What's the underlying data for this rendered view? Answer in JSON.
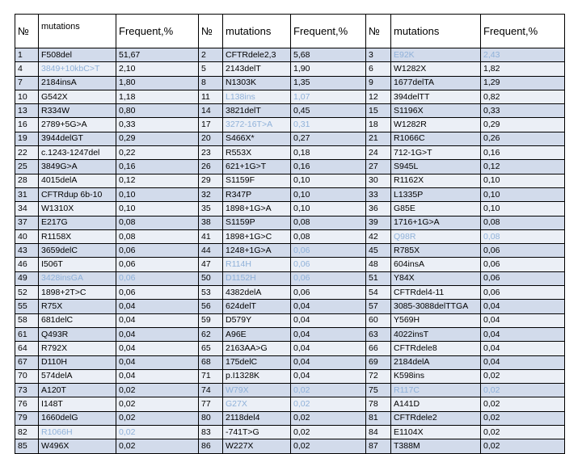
{
  "headers": [
    "№",
    "mutations",
    "Frequent,%",
    "№",
    "mutations",
    "Frequent,%",
    "№",
    "mutations",
    "Frequent,%"
  ],
  "rows": [
    [
      "1",
      "F508del",
      "51,67",
      "2",
      "CFTRdele2,3",
      "5,68",
      "3",
      "E92K",
      "2,43"
    ],
    [
      "4",
      "3849+10kbC>T",
      "2,10",
      "5",
      "2143delT",
      "1,90",
      "6",
      "W1282X",
      "1,82"
    ],
    [
      "7",
      "2184insA",
      "1,80",
      "8",
      "N1303K",
      "1,35",
      "9",
      "1677delTA",
      "1,29"
    ],
    [
      "10",
      "G542X",
      "1,18",
      "11",
      "L138ins",
      "1,07",
      "12",
      "394delTT",
      "0,82"
    ],
    [
      "13",
      "R334W",
      "0,80",
      "14",
      "3821delT",
      "0,45",
      "15",
      "S1196X",
      "0,33"
    ],
    [
      "16",
      "2789+5G>A",
      "0,33",
      "17",
      "3272-16T>A",
      "0,31",
      "18",
      "W1282R",
      "0,29"
    ],
    [
      "19",
      "3944delGT",
      "0,29",
      "20",
      "S466X*",
      "0,27",
      "21",
      "R1066C",
      "0,26"
    ],
    [
      "22",
      "c.1243-1247del",
      "0,22",
      "23",
      "R553X",
      "0,18",
      "24",
      "712-1G>T",
      "0,16"
    ],
    [
      "25",
      "3849G>A",
      "0,16",
      "26",
      "621+1G>T",
      "0,16",
      "27",
      "S945L",
      "0,12"
    ],
    [
      "28",
      "4015delA",
      "0,12",
      "29",
      "S1159F",
      "0,10",
      "30",
      "R1162X",
      "0,10"
    ],
    [
      "31",
      "CFTRdup 6b-10",
      "0,10",
      "32",
      "R347P",
      "0,10",
      "33",
      "L1335P",
      "0,10"
    ],
    [
      "34",
      "W1310X",
      "0,10",
      "35",
      "1898+1G>A",
      "0,10",
      "36",
      "G85E",
      "0,10"
    ],
    [
      "37",
      "E217G",
      "0,08",
      "38",
      "S1159P",
      "0,08",
      "39",
      "1716+1G>A",
      "0,08"
    ],
    [
      "40",
      "R1158X",
      "0,08",
      "41",
      "1898+1G>C",
      "0,08",
      "42",
      "Q98R",
      "0,08"
    ],
    [
      "43",
      "3659delC",
      "0,06",
      "44",
      "1248+1G>A",
      "0,06",
      "45",
      "R785X",
      "0,06"
    ],
    [
      "46",
      "I506T",
      "0,06",
      "47",
      "R114H",
      "0,06",
      "48",
      "604insA",
      "0,06"
    ],
    [
      "49",
      "3428insGA",
      "0,06",
      "50",
      "D1152H",
      "0,06",
      "51",
      "Y84X",
      "0,06"
    ],
    [
      "52",
      "1898+2T>C",
      "0,06",
      "53",
      "4382delA",
      "0,06",
      "54",
      "CFTRdel4-11",
      "0,06"
    ],
    [
      "55",
      "R75X",
      "0,04",
      "56",
      "624delT",
      "0,04",
      "57",
      "3085-3088delTTGA",
      "0,04"
    ],
    [
      "58",
      "681delC",
      "0,04",
      "59",
      "D579Y",
      "0,04",
      "60",
      "Y569H",
      "0,04"
    ],
    [
      "61",
      "Q493R",
      "0,04",
      "62",
      "A96E",
      "0,04",
      "63",
      "4022insT",
      "0,04"
    ],
    [
      "64",
      "R792X",
      "0,04",
      "65",
      "2163AA>G",
      "0,04",
      "66",
      "CFTRdele8",
      "0,04"
    ],
    [
      "67",
      "D110H",
      "0,04",
      "68",
      "175delC",
      "0,04",
      "69",
      "2184delA",
      "0,04"
    ],
    [
      "70",
      "574delA",
      "0,04",
      "71",
      "p.I1328K",
      "0,04",
      "72",
      "K598ins",
      "0,02"
    ],
    [
      "73",
      "A120T",
      "0,02",
      "74",
      "W79X",
      "0,02",
      "75",
      "R117C",
      "0,02"
    ],
    [
      "76",
      "I148T",
      "0,02",
      "77",
      "G27X",
      "0,02",
      "78",
      "A141D",
      "0,02"
    ],
    [
      "79",
      "1660delG",
      "0,02",
      "80",
      "2118del4",
      "0,02",
      "81",
      "CFTRdele2",
      "0,02"
    ],
    [
      "82",
      "R1066H",
      "0,02",
      "83",
      "-741T>G",
      "0,02",
      "84",
      "E1104X",
      "0,02"
    ],
    [
      "85",
      "W496X",
      "0,02",
      "86",
      "W227X",
      "0,02",
      "87",
      "T388M",
      "0,02"
    ]
  ],
  "highlighted_cells": [
    [
      0,
      7
    ],
    [
      0,
      8
    ],
    [
      1,
      1
    ],
    [
      3,
      4
    ],
    [
      3,
      5
    ],
    [
      5,
      4
    ],
    [
      5,
      5
    ],
    [
      13,
      7
    ],
    [
      13,
      8
    ],
    [
      14,
      5
    ],
    [
      15,
      4
    ],
    [
      15,
      5
    ],
    [
      16,
      1
    ],
    [
      16,
      2
    ],
    [
      16,
      4
    ],
    [
      16,
      5
    ],
    [
      24,
      4
    ],
    [
      24,
      5
    ],
    [
      24,
      7
    ],
    [
      24,
      8
    ],
    [
      25,
      4
    ],
    [
      25,
      5
    ],
    [
      27,
      1
    ],
    [
      27,
      2
    ]
  ],
  "colors": {
    "odd_row": "#d2dbeb",
    "even_row": "#ebeff6",
    "highlight_text": "#8fb1d9",
    "border": "#000000"
  }
}
